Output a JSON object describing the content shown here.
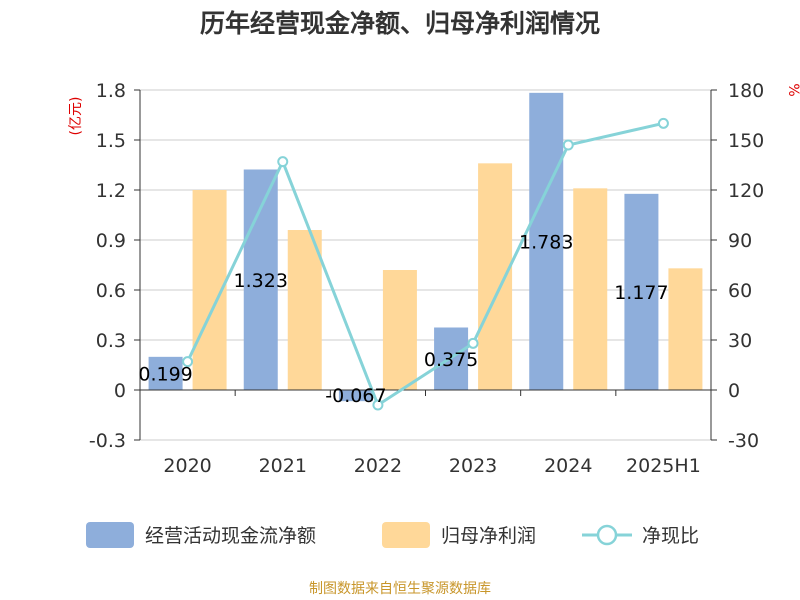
{
  "title": "历年经营现金净额、归母净利润情况",
  "y_left_unit": "(亿元)",
  "y_right_unit": "%",
  "source": "制图数据来自恒生聚源数据库",
  "colors": {
    "cash": "#8eaedb",
    "profit": "#ffd899",
    "ratio": "#86d3d8"
  },
  "chart_data": {
    "type": "bar",
    "categories": [
      "2020",
      "2021",
      "2022",
      "2023",
      "2024",
      "2025H1"
    ],
    "series": [
      {
        "name": "经营活动现金流净额",
        "type": "bar",
        "axis": "left",
        "values": [
          0.199,
          1.323,
          -0.067,
          0.375,
          1.783,
          1.177
        ],
        "labels": [
          "0.199",
          "1.323",
          "-0.067",
          "0.375",
          "1.783",
          "1.177"
        ]
      },
      {
        "name": "归母净利润",
        "type": "bar",
        "axis": "left",
        "values": [
          1.2,
          0.96,
          0.72,
          1.36,
          1.21,
          0.73
        ]
      },
      {
        "name": "净现比",
        "type": "line",
        "axis": "right",
        "values": [
          17,
          137,
          -9,
          28,
          147,
          160
        ]
      }
    ],
    "y_left": {
      "ticks": [
        "1.8",
        "1.5",
        "1.2",
        "0.9",
        "0.6",
        "0.3",
        "0",
        "-0.3"
      ],
      "lim": [
        -0.3,
        1.8
      ]
    },
    "y_right": {
      "ticks": [
        "180",
        "150",
        "120",
        "90",
        "60",
        "30",
        "0",
        "-30"
      ],
      "lim": [
        -30,
        180
      ]
    },
    "grid": true,
    "legend_position": "bottom"
  }
}
